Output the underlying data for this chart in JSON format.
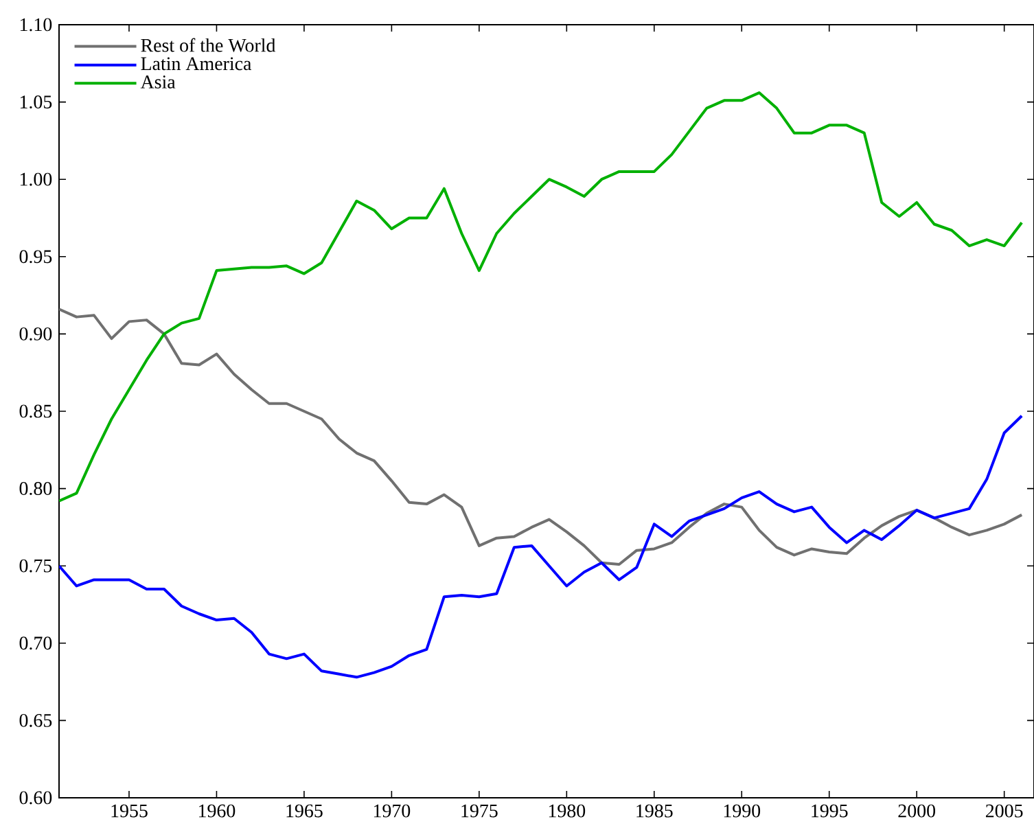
{
  "chart_data": {
    "type": "line",
    "x": [
      1951,
      1952,
      1953,
      1954,
      1955,
      1956,
      1957,
      1958,
      1959,
      1960,
      1961,
      1962,
      1963,
      1964,
      1965,
      1966,
      1967,
      1968,
      1969,
      1970,
      1971,
      1972,
      1973,
      1974,
      1975,
      1976,
      1977,
      1978,
      1979,
      1980,
      1981,
      1982,
      1983,
      1984,
      1985,
      1986,
      1987,
      1988,
      1989,
      1990,
      1991,
      1992,
      1993,
      1994,
      1995,
      1996,
      1997,
      1998,
      1999,
      2000,
      2001,
      2002,
      2003,
      2004,
      2005,
      2006
    ],
    "series": [
      {
        "name": "Rest of the World",
        "color": "#707070",
        "values": [
          0.916,
          0.911,
          0.912,
          0.897,
          0.908,
          0.909,
          0.9,
          0.881,
          0.88,
          0.887,
          0.874,
          0.864,
          0.855,
          0.855,
          0.85,
          0.845,
          0.832,
          0.823,
          0.818,
          0.805,
          0.791,
          0.79,
          0.796,
          0.788,
          0.763,
          0.768,
          0.769,
          0.775,
          0.78,
          0.772,
          0.763,
          0.752,
          0.751,
          0.76,
          0.761,
          0.765,
          0.775,
          0.784,
          0.79,
          0.788,
          0.773,
          0.762,
          0.757,
          0.761,
          0.759,
          0.758,
          0.768,
          0.776,
          0.782,
          0.786,
          0.781,
          0.775,
          0.77,
          0.773,
          0.777,
          0.783
        ]
      },
      {
        "name": "Latin America",
        "color": "#0000ff",
        "values": [
          0.75,
          0.737,
          0.741,
          0.741,
          0.741,
          0.735,
          0.735,
          0.724,
          0.719,
          0.715,
          0.716,
          0.707,
          0.693,
          0.69,
          0.693,
          0.682,
          0.68,
          0.678,
          0.681,
          0.685,
          0.692,
          0.696,
          0.73,
          0.731,
          0.73,
          0.732,
          0.762,
          0.763,
          0.75,
          0.737,
          0.746,
          0.752,
          0.741,
          0.749,
          0.777,
          0.769,
          0.779,
          0.783,
          0.787,
          0.794,
          0.798,
          0.79,
          0.785,
          0.788,
          0.775,
          0.765,
          0.773,
          0.767,
          0.776,
          0.786,
          0.781,
          0.784,
          0.787,
          0.806,
          0.836,
          0.847
        ]
      },
      {
        "name": "Asia",
        "color": "#00b000",
        "values": [
          0.792,
          0.797,
          0.822,
          0.845,
          0.864,
          0.883,
          0.9,
          0.907,
          0.91,
          0.941,
          0.942,
          0.943,
          0.943,
          0.944,
          0.939,
          0.946,
          0.966,
          0.986,
          0.98,
          0.968,
          0.975,
          0.975,
          0.994,
          0.965,
          0.941,
          0.965,
          0.978,
          0.989,
          1.0,
          0.995,
          0.989,
          1.0,
          1.005,
          1.005,
          1.005,
          1.016,
          1.031,
          1.046,
          1.051,
          1.051,
          1.056,
          1.046,
          1.03,
          1.03,
          1.035,
          1.035,
          1.03,
          0.985,
          0.976,
          0.985,
          0.971,
          0.967,
          0.957,
          0.961,
          0.957,
          0.972
        ]
      }
    ],
    "xlim": [
      1951,
      2006.7
    ],
    "ylim": [
      0.6,
      1.1
    ],
    "xticks": [
      1955,
      1960,
      1965,
      1970,
      1975,
      1980,
      1985,
      1990,
      1995,
      2000,
      2005
    ],
    "yticks": [
      {
        "value": 0.6,
        "label": "0.60"
      },
      {
        "value": 0.65,
        "label": "0.65"
      },
      {
        "value": 0.7,
        "label": "0.70"
      },
      {
        "value": 0.75,
        "label": "0.75"
      },
      {
        "value": 0.8,
        "label": "0.80"
      },
      {
        "value": 0.85,
        "label": "0.85"
      },
      {
        "value": 0.9,
        "label": "0.90"
      },
      {
        "value": 0.95,
        "label": "0.95"
      },
      {
        "value": 1.0,
        "label": "1.00"
      },
      {
        "value": 1.05,
        "label": "1.05"
      },
      {
        "value": 1.1,
        "label": "1.10"
      }
    ],
    "legend": "top left",
    "grid": false,
    "line_style": "solid",
    "marker": "none"
  }
}
